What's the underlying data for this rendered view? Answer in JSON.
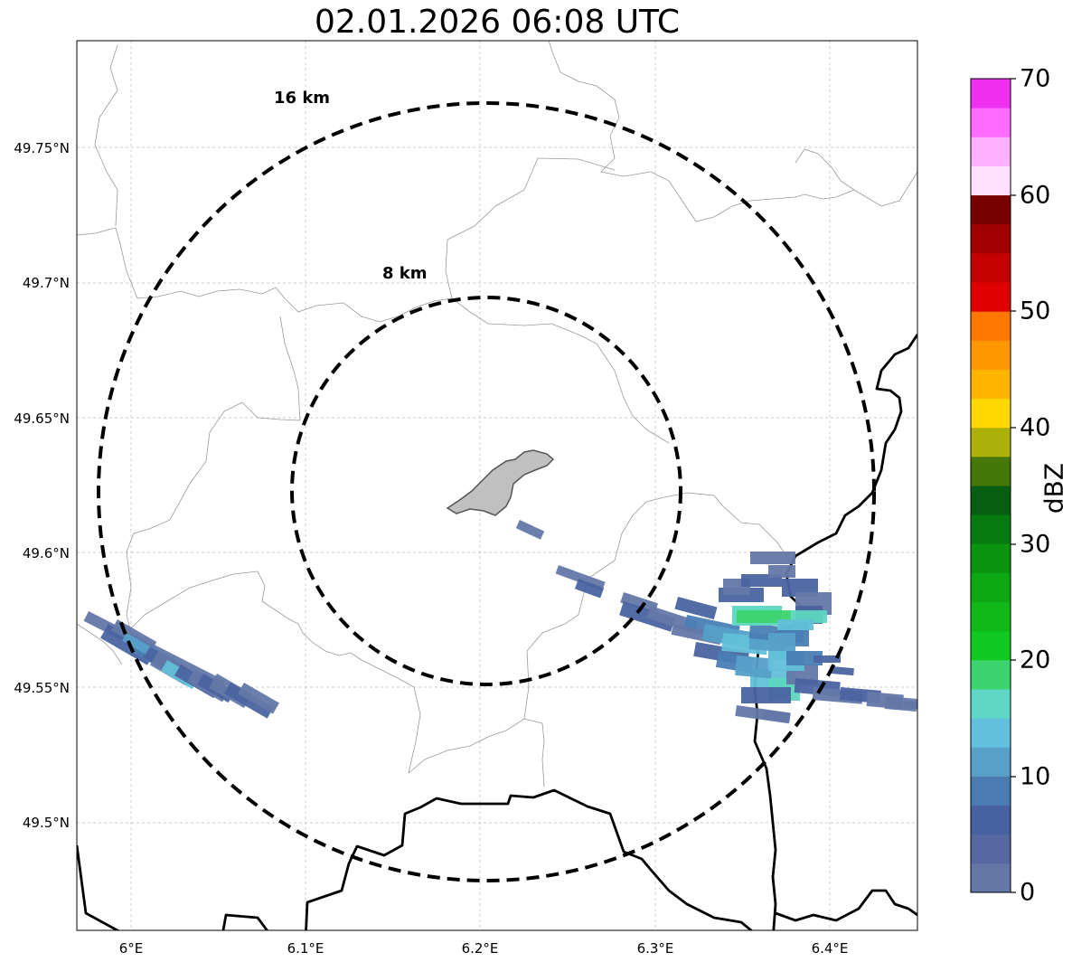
{
  "title": "02.01.2026 06:08 UTC",
  "map": {
    "lat_ticks": [
      "49.75°N",
      "49.7°N",
      "49.65°N",
      "49.6°N",
      "49.55°N",
      "49.5°N"
    ],
    "lon_ticks": [
      "6°E",
      "6.1°E",
      "6.2°E",
      "6.3°E",
      "6.4°E"
    ],
    "range_rings": [
      "8 km",
      "16 km"
    ],
    "radar_center": [
      6.205,
      49.623
    ],
    "echo_colors": [
      "#6478a8",
      "#4b64a0",
      "#4a7eb4",
      "#56a0c8",
      "#62c0d8",
      "#5cd6c0",
      "#3cd46e"
    ]
  },
  "colorbar": {
    "label": "dBZ",
    "ticks": [
      "0",
      "10",
      "20",
      "30",
      "40",
      "50",
      "60",
      "70"
    ],
    "colors": [
      "#6478a8",
      "#5568a0",
      "#4760a0",
      "#4a7cb2",
      "#58a0c8",
      "#62c0dc",
      "#5ed8c4",
      "#3cd46e",
      "#10c820",
      "#10b818",
      "#0ea814",
      "#0a9410",
      "#087a10",
      "#065e10",
      "#447808",
      "#acb008",
      "#ffd800",
      "#ffb400",
      "#ff9800",
      "#ff7800",
      "#e00000",
      "#c40000",
      "#a00000",
      "#780000",
      "#ffe0ff",
      "#ffb0ff",
      "#ff6cff",
      "#f030f0"
    ]
  }
}
